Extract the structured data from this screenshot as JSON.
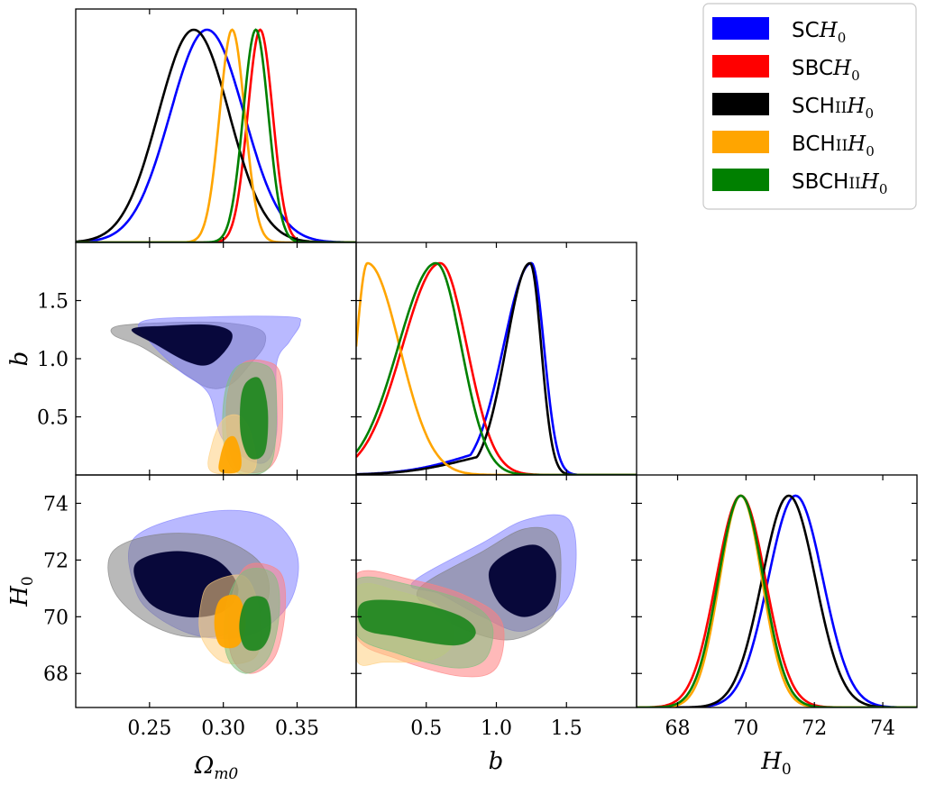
{
  "chart_data": {
    "type": "triangle-corner-plot",
    "parameters": [
      {
        "key": "om",
        "label": "Ω_m0",
        "range": [
          0.2,
          0.39
        ],
        "ticks": [
          0.25,
          0.3,
          0.35
        ],
        "tick_labels": [
          "0.25",
          "0.30",
          "0.35"
        ]
      },
      {
        "key": "b",
        "label": "b",
        "range": [
          0.0,
          2.0
        ],
        "ticks": [
          0.5,
          1.0,
          1.5
        ],
        "tick_labels": [
          "0.5",
          "1.0",
          "1.5"
        ]
      },
      {
        "key": "h0",
        "label": "H_0",
        "range": [
          66.8,
          75.0
        ],
        "ticks": [
          68,
          70,
          72,
          74
        ],
        "tick_labels": [
          "68",
          "70",
          "72",
          "74"
        ]
      }
    ],
    "y_axes": {
      "b": {
        "ticks": [
          0.5,
          1.0,
          1.5
        ],
        "tick_labels": [
          "0.5",
          "1.0",
          "1.5"
        ],
        "range": [
          0.0,
          2.0
        ]
      },
      "h0": {
        "ticks": [
          68,
          70,
          72,
          74
        ],
        "tick_labels": [
          "68",
          "70",
          "72",
          "74"
        ],
        "range": [
          66.8,
          75.0
        ]
      }
    },
    "axis_labels": {
      "x_om": "Ωm0",
      "x_b": "b",
      "x_h0": "H0",
      "y_b": "b",
      "y_h0": "H0"
    },
    "series": [
      {
        "name": "SCH0",
        "legend": {
          "pre": "SC",
          "sc": "",
          "math": "H",
          "sub": "0"
        },
        "color": "#0000ff",
        "om": {
          "mean": 0.289,
          "sd": 0.025
        },
        "b": {
          "mode": 1.25,
          "left": 0.2,
          "right": 0.09,
          "tail": 0.15
        },
        "h0": {
          "mean": 71.45,
          "sd": 0.8
        }
      },
      {
        "name": "SBCH0",
        "legend": {
          "pre": "SBC",
          "sc": "",
          "math": "H",
          "sub": "0"
        },
        "color": "#ff0000",
        "om": {
          "mean": 0.325,
          "sd": 0.0085
        },
        "b": {
          "mode": 0.6,
          "left": 0.27,
          "right": 0.19,
          "tail": 0.0
        },
        "h0": {
          "mean": 69.85,
          "sd": 0.72
        }
      },
      {
        "name": "SCHIIH0",
        "legend": {
          "pre": "SCH",
          "sc": "II",
          "math": "H",
          "sub": "0"
        },
        "color": "#000000",
        "om": {
          "mean": 0.28,
          "sd": 0.024
        },
        "b": {
          "mode": 1.24,
          "left": 0.17,
          "right": 0.08,
          "tail": 0.12
        },
        "h0": {
          "mean": 71.25,
          "sd": 0.78
        }
      },
      {
        "name": "BCHIIH0",
        "legend": {
          "pre": "BCH",
          "sc": "II",
          "math": "H",
          "sub": "0"
        },
        "color": "#ffa500",
        "om": {
          "mean": 0.306,
          "sd": 0.0085
        },
        "b": {
          "mode": 0.08,
          "left": 0.08,
          "right": 0.23,
          "tail": 0.0
        },
        "h0": {
          "mean": 69.85,
          "sd": 0.62
        }
      },
      {
        "name": "SBCHIIH0",
        "legend": {
          "pre": "SBCH",
          "sc": "II",
          "math": "H",
          "sub": "0"
        },
        "color": "#008000",
        "om": {
          "mean": 0.322,
          "sd": 0.0085
        },
        "b": {
          "mode": 0.57,
          "left": 0.27,
          "right": 0.18,
          "tail": 0.0
        },
        "h0": {
          "mean": 69.85,
          "sd": 0.66
        }
      }
    ],
    "contours_2d": {
      "om_b": [
        {
          "series": "SCHIIH0",
          "level": "95",
          "color": "#808080",
          "points": [
            [
              0.228,
              1.28
            ],
            [
              0.26,
              1.31
            ],
            [
              0.3,
              1.31
            ],
            [
              0.325,
              1.25
            ],
            [
              0.328,
              1.12
            ],
            [
              0.318,
              0.95
            ],
            [
              0.305,
              0.78
            ],
            [
              0.29,
              0.75
            ],
            [
              0.27,
              0.9
            ],
            [
              0.245,
              1.1
            ],
            [
              0.226,
              1.2
            ]
          ]
        },
        {
          "series": "SCH0",
          "level": "95",
          "color": "#8080ff",
          "points": [
            [
              0.245,
              1.32
            ],
            [
              0.29,
              1.36
            ],
            [
              0.345,
              1.36
            ],
            [
              0.352,
              1.3
            ],
            [
              0.345,
              1.15
            ],
            [
              0.336,
              0.95
            ],
            [
              0.336,
              0.35
            ],
            [
              0.326,
              0.1
            ],
            [
              0.3,
              0.3
            ],
            [
              0.29,
              0.7
            ],
            [
              0.27,
              0.9
            ],
            [
              0.25,
              1.15
            ]
          ]
        },
        {
          "series": "SCHIIH0",
          "level": "68",
          "color": "#000033",
          "points": [
            [
              0.238,
              1.25
            ],
            [
              0.26,
              1.28
            ],
            [
              0.29,
              1.29
            ],
            [
              0.305,
              1.23
            ],
            [
              0.303,
              1.1
            ],
            [
              0.29,
              0.95
            ],
            [
              0.275,
              0.98
            ],
            [
              0.255,
              1.12
            ]
          ]
        },
        {
          "series": "SBCH0",
          "level": "95",
          "color": "#ff8080",
          "points": [
            [
              0.312,
              0.95
            ],
            [
              0.328,
              0.98
            ],
            [
              0.339,
              0.85
            ],
            [
              0.339,
              0.3
            ],
            [
              0.33,
              0.05
            ],
            [
              0.31,
              0.05
            ],
            [
              0.303,
              0.3
            ],
            [
              0.303,
              0.7
            ]
          ]
        },
        {
          "series": "SBCHIIH0",
          "level": "95",
          "color": "#80c080",
          "points": [
            [
              0.309,
              0.93
            ],
            [
              0.325,
              0.96
            ],
            [
              0.335,
              0.82
            ],
            [
              0.335,
              0.25
            ],
            [
              0.328,
              0.03
            ],
            [
              0.308,
              0.03
            ],
            [
              0.3,
              0.3
            ],
            [
              0.301,
              0.7
            ]
          ]
        },
        {
          "series": "BCHIIH0",
          "level": "95",
          "color": "#ffd080",
          "points": [
            [
              0.3,
              0.48
            ],
            [
              0.312,
              0.5
            ],
            [
              0.32,
              0.3
            ],
            [
              0.32,
              0.03
            ],
            [
              0.292,
              0.03
            ],
            [
              0.292,
              0.25
            ]
          ]
        },
        {
          "series": "BCHIIH0",
          "level": "68",
          "color": "#ffa500",
          "points": [
            [
              0.302,
              0.3
            ],
            [
              0.308,
              0.32
            ],
            [
              0.312,
              0.15
            ],
            [
              0.31,
              0.03
            ],
            [
              0.298,
              0.03
            ],
            [
              0.298,
              0.15
            ]
          ]
        },
        {
          "series": "SBCHIIH0",
          "level": "68",
          "color": "#228822",
          "points": [
            [
              0.316,
              0.8
            ],
            [
              0.325,
              0.82
            ],
            [
              0.33,
              0.55
            ],
            [
              0.328,
              0.2
            ],
            [
              0.318,
              0.15
            ],
            [
              0.312,
              0.35
            ],
            [
              0.312,
              0.65
            ]
          ]
        }
      ],
      "om_h0": [
        {
          "series": "SCH0",
          "level": "95",
          "color": "#8080ff",
          "points": [
            [
              0.24,
              72.8
            ],
            [
              0.29,
              73.7
            ],
            [
              0.33,
              73.5
            ],
            [
              0.35,
              72.2
            ],
            [
              0.345,
              70.5
            ],
            [
              0.32,
              69.4
            ],
            [
              0.285,
              69.3
            ],
            [
              0.255,
              70.0
            ],
            [
              0.24,
              71.0
            ]
          ]
        },
        {
          "series": "SCHIIH0",
          "level": "95",
          "color": "#808080",
          "points": [
            [
              0.225,
              72.3
            ],
            [
              0.255,
              72.9
            ],
            [
              0.295,
              72.8
            ],
            [
              0.325,
              71.9
            ],
            [
              0.33,
              70.6
            ],
            [
              0.31,
              69.5
            ],
            [
              0.275,
              69.3
            ],
            [
              0.245,
              69.9
            ],
            [
              0.225,
              71.0
            ]
          ]
        },
        {
          "series": "SCHIIH0",
          "level": "68",
          "color": "#000033",
          "points": [
            [
              0.24,
              71.8
            ],
            [
              0.265,
              72.3
            ],
            [
              0.295,
              72.0
            ],
            [
              0.31,
              71.0
            ],
            [
              0.3,
              70.2
            ],
            [
              0.275,
              70.0
            ],
            [
              0.25,
              70.5
            ]
          ]
        },
        {
          "series": "BCHIIH0",
          "level": "95",
          "color": "#ffd080",
          "points": [
            [
              0.292,
              71.2
            ],
            [
              0.315,
              71.4
            ],
            [
              0.325,
              70.0
            ],
            [
              0.322,
              68.6
            ],
            [
              0.3,
              68.4
            ],
            [
              0.285,
              69.3
            ],
            [
              0.285,
              70.5
            ]
          ]
        },
        {
          "series": "SBCH0",
          "level": "95",
          "color": "#ff8080",
          "points": [
            [
              0.316,
              71.8
            ],
            [
              0.338,
              71.6
            ],
            [
              0.342,
              70.3
            ],
            [
              0.335,
              68.6
            ],
            [
              0.318,
              68.0
            ],
            [
              0.305,
              68.7
            ],
            [
              0.305,
              70.5
            ]
          ]
        },
        {
          "series": "SBCHIIH0",
          "level": "95",
          "color": "#80c080",
          "points": [
            [
              0.314,
              71.6
            ],
            [
              0.334,
              71.5
            ],
            [
              0.338,
              70.2
            ],
            [
              0.331,
              68.6
            ],
            [
              0.315,
              68.0
            ],
            [
              0.302,
              68.7
            ],
            [
              0.302,
              70.4
            ]
          ]
        },
        {
          "series": "BCHIIH0",
          "level": "68",
          "color": "#ffa500",
          "points": [
            [
              0.298,
              70.6
            ],
            [
              0.31,
              70.7
            ],
            [
              0.315,
              69.8
            ],
            [
              0.31,
              69.0
            ],
            [
              0.298,
              69.0
            ],
            [
              0.294,
              69.8
            ]
          ]
        },
        {
          "series": "SBCHIIH0",
          "level": "68",
          "color": "#228822",
          "points": [
            [
              0.316,
              70.6
            ],
            [
              0.329,
              70.6
            ],
            [
              0.332,
              69.6
            ],
            [
              0.326,
              68.9
            ],
            [
              0.315,
              68.9
            ],
            [
              0.311,
              69.7
            ]
          ]
        }
      ],
      "b_h0": [
        {
          "series": "SCH0",
          "level": "95",
          "color": "#8080ff",
          "points": [
            [
              0.4,
              71.2
            ],
            [
              0.9,
              72.6
            ],
            [
              1.2,
              73.4
            ],
            [
              1.5,
              73.5
            ],
            [
              1.57,
              72.2
            ],
            [
              1.5,
              70.6
            ],
            [
              1.2,
              69.5
            ],
            [
              0.9,
              70.0
            ],
            [
              0.6,
              70.8
            ]
          ]
        },
        {
          "series": "SCHIIH0",
          "level": "95",
          "color": "#808080",
          "points": [
            [
              0.45,
              71.0
            ],
            [
              0.9,
              72.3
            ],
            [
              1.2,
              73.1
            ],
            [
              1.42,
              72.9
            ],
            [
              1.46,
              71.5
            ],
            [
              1.4,
              70.0
            ],
            [
              1.12,
              69.2
            ],
            [
              0.8,
              69.5
            ],
            [
              0.55,
              70.2
            ]
          ]
        },
        {
          "series": "SCHIIH0",
          "level": "68",
          "color": "#000033",
          "points": [
            [
              0.95,
              71.6
            ],
            [
              1.1,
              72.3
            ],
            [
              1.3,
              72.5
            ],
            [
              1.42,
              71.7
            ],
            [
              1.38,
              70.5
            ],
            [
              1.2,
              70.0
            ],
            [
              1.02,
              70.5
            ]
          ]
        },
        {
          "series": "SBCH0",
          "level": "95",
          "color": "#ff8080",
          "points": [
            [
              0.0,
              71.5
            ],
            [
              0.4,
              71.3
            ],
            [
              0.8,
              70.7
            ],
            [
              1.04,
              69.8
            ],
            [
              1.0,
              68.2
            ],
            [
              0.75,
              67.9
            ],
            [
              0.3,
              68.5
            ],
            [
              0.0,
              69.3
            ]
          ]
        },
        {
          "series": "BCHIIH0",
          "level": "95",
          "color": "#ffd080",
          "points": [
            [
              0.0,
              71.0
            ],
            [
              0.3,
              70.9
            ],
            [
              0.6,
              70.3
            ],
            [
              0.7,
              69.2
            ],
            [
              0.55,
              68.5
            ],
            [
              0.2,
              68.4
            ],
            [
              0.0,
              68.5
            ]
          ]
        },
        {
          "series": "SBCHIIH0",
          "level": "95",
          "color": "#80c080",
          "points": [
            [
              0.0,
              71.3
            ],
            [
              0.4,
              71.1
            ],
            [
              0.8,
              70.5
            ],
            [
              0.97,
              69.7
            ],
            [
              0.92,
              68.5
            ],
            [
              0.7,
              68.2
            ],
            [
              0.3,
              68.7
            ],
            [
              0.0,
              69.4
            ]
          ]
        },
        {
          "series": "SBCHIIH0",
          "level": "68",
          "color": "#228822",
          "points": [
            [
              0.05,
              70.5
            ],
            [
              0.4,
              70.5
            ],
            [
              0.75,
              70.0
            ],
            [
              0.85,
              69.4
            ],
            [
              0.7,
              69.0
            ],
            [
              0.3,
              69.3
            ],
            [
              0.05,
              69.6
            ]
          ]
        }
      ]
    }
  }
}
